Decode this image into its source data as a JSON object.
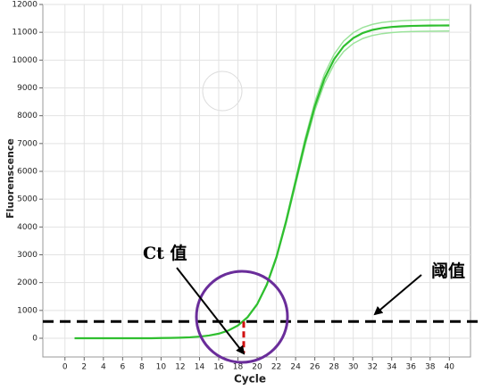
{
  "chart_data": {
    "type": "line",
    "y_label": "Fluorenscence",
    "x_label": "Cycle",
    "x": [
      1,
      2,
      3,
      4,
      5,
      6,
      7,
      8,
      9,
      10,
      11,
      12,
      13,
      14,
      15,
      16,
      17,
      18,
      19,
      20,
      21,
      22,
      23,
      24,
      25,
      26,
      27,
      28,
      29,
      30,
      31,
      32,
      33,
      34,
      35,
      36,
      37,
      38,
      39,
      40
    ],
    "series": [
      {
        "color": "#9be39b",
        "values": [
          0,
          0,
          0,
          0,
          0,
          0,
          0,
          0,
          0,
          7,
          12,
          20,
          35,
          59,
          100,
          167,
          281,
          467,
          769,
          1243,
          1958,
          2959,
          4257,
          5726,
          7198,
          8490,
          9496,
          10207,
          10685,
          10985,
          11173,
          11286,
          11353,
          11392,
          11416,
          11430,
          11438,
          11443,
          11446,
          11448
        ]
      },
      {
        "color": "#9be39b",
        "values": [
          0,
          0,
          0,
          0,
          0,
          0,
          0,
          0,
          0,
          7,
          12,
          20,
          33,
          57,
          96,
          161,
          271,
          451,
          741,
          1199,
          1888,
          2855,
          4107,
          5524,
          6944,
          8190,
          9160,
          9847,
          10307,
          10597,
          10777,
          10886,
          10951,
          10990,
          11012,
          11026,
          11034,
          11039,
          11042,
          11044
        ]
      },
      {
        "color": "#2fbf2f",
        "values": [
          0,
          0,
          0,
          0,
          0,
          0,
          0,
          0,
          0,
          7,
          12,
          20,
          34,
          58,
          98,
          164,
          276,
          459,
          755,
          1221,
          1923,
          2907,
          4182,
          5625,
          7071,
          8340,
          9328,
          10027,
          10496,
          10791,
          10975,
          11086,
          11152,
          11191,
          11214,
          11228,
          11236,
          11241,
          11244,
          11246
        ]
      }
    ],
    "xlim": [
      -2.3,
      42.2
    ],
    "ylim": [
      -674,
      12000
    ],
    "xticks": [
      0,
      2,
      4,
      6,
      8,
      10,
      12,
      14,
      16,
      18,
      20,
      22,
      24,
      26,
      28,
      30,
      32,
      34,
      36,
      38,
      40
    ],
    "yticks": [
      0,
      1000,
      2000,
      3000,
      4000,
      5000,
      6000,
      7000,
      8000,
      9000,
      10000,
      11000,
      12000
    ],
    "grid": true,
    "threshold": 600,
    "ct": 18.6,
    "ct_label": "Ct 值",
    "threshold_label": "阈值"
  }
}
